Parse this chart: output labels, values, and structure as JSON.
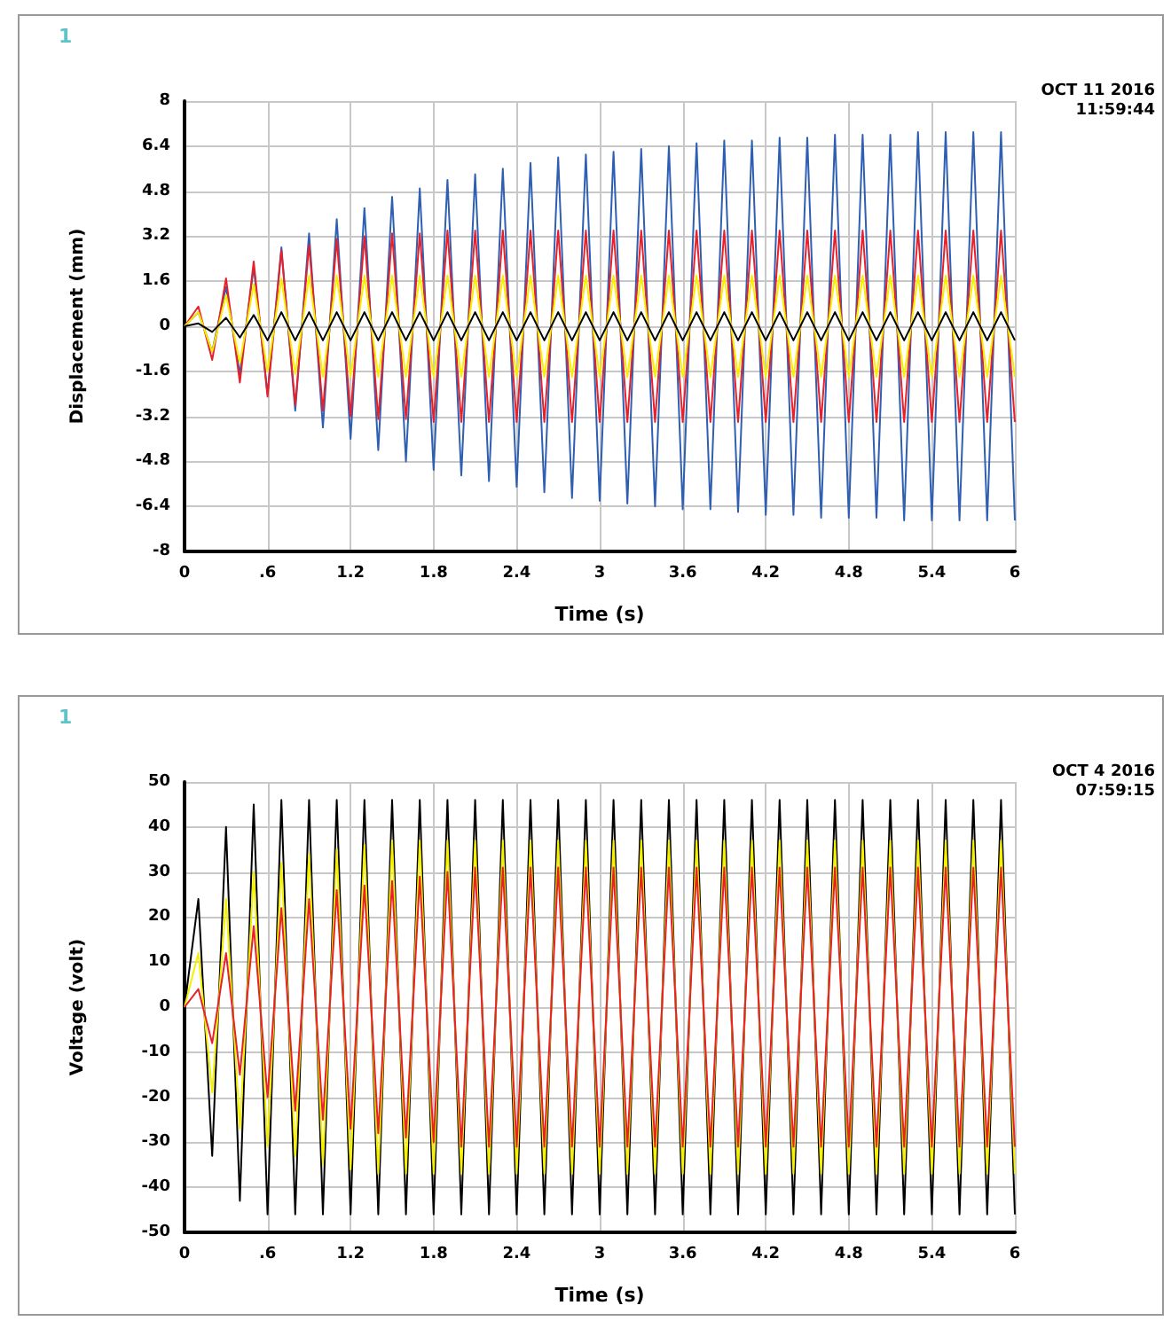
{
  "chart_data": [
    {
      "type": "line",
      "xlabel": "Time (s)",
      "ylabel": "Displacement (mm)",
      "annotations": [
        "1",
        "OCT 11 2016",
        "11:59:44"
      ],
      "x": [
        0,
        0.1,
        0.2,
        0.3,
        0.4,
        0.5,
        0.6,
        0.7,
        0.8,
        0.9,
        1,
        1.1,
        1.2,
        1.3,
        1.4,
        1.5,
        1.6,
        1.7,
        1.8,
        1.9,
        2,
        2.1,
        2.2,
        2.3,
        2.4,
        2.5,
        2.6,
        2.7,
        2.8,
        2.9,
        3,
        3.1,
        3.2,
        3.3,
        3.4,
        3.5,
        3.6,
        3.7,
        3.8,
        3.9,
        4,
        4.1,
        4.2,
        4.3,
        4.4,
        4.5,
        4.6,
        4.7,
        4.8,
        4.9,
        5,
        5.1,
        5.2,
        5.3,
        5.4,
        5.5,
        5.6,
        5.7,
        5.8,
        5.9,
        6
      ],
      "xlim": [
        0,
        6
      ],
      "xticks": [
        0,
        {
          "value": 0.6,
          "label": ".6"
        },
        1.2,
        1.8,
        2.4,
        3,
        3.6,
        4.2,
        4.8,
        5.4,
        6
      ],
      "ylim": [
        -8,
        8
      ],
      "yticks": [
        -8,
        -6.4,
        -4.8,
        -3.2,
        -1.6,
        0,
        1.6,
        3.2,
        4.8,
        6.4,
        8
      ],
      "grid": true,
      "series": [
        {
          "color": "#2f5fb3",
          "values": [
            0,
            0.5,
            -0.9,
            1.4,
            -1.7,
            2.1,
            -2.4,
            2.8,
            -3.0,
            3.3,
            -3.6,
            3.8,
            -4.0,
            4.2,
            -4.4,
            4.6,
            -4.8,
            4.9,
            -5.1,
            5.2,
            -5.3,
            5.4,
            -5.5,
            5.6,
            -5.7,
            5.8,
            -5.9,
            6.0,
            -6.1,
            6.1,
            -6.2,
            6.2,
            -6.3,
            6.3,
            -6.4,
            6.4,
            -6.5,
            6.5,
            -6.5,
            6.6,
            -6.6,
            6.6,
            -6.7,
            6.7,
            -6.7,
            6.7,
            -6.8,
            6.8,
            -6.8,
            6.8,
            -6.8,
            6.8,
            -6.9,
            6.9,
            -6.9,
            6.9,
            -6.9,
            6.9,
            -6.9,
            6.9,
            -6.9
          ]
        },
        {
          "color": "#e8202a",
          "values": [
            0,
            0.7,
            -1.2,
            1.7,
            -2.0,
            2.3,
            -2.5,
            2.7,
            -2.8,
            2.9,
            -3.0,
            3.1,
            -3.2,
            3.2,
            -3.3,
            3.3,
            -3.3,
            3.3,
            -3.4,
            3.4,
            -3.4,
            3.4,
            -3.4,
            3.4,
            -3.4,
            3.4,
            -3.4,
            3.4,
            -3.4,
            3.4,
            -3.4,
            3.4,
            -3.4,
            3.4,
            -3.4,
            3.4,
            -3.4,
            3.4,
            -3.4,
            3.4,
            -3.4,
            3.4,
            -3.4,
            3.4,
            -3.4,
            3.4,
            -3.4,
            3.4,
            -3.4,
            3.4,
            -3.4,
            3.4,
            -3.4,
            3.4,
            -3.4,
            3.4,
            -3.4,
            3.4,
            -3.4,
            3.4,
            -3.4
          ]
        },
        {
          "color": "#f5f000",
          "values": [
            0,
            0.5,
            -0.9,
            1.1,
            -1.3,
            1.5,
            -1.6,
            1.7,
            -1.7,
            1.8,
            -1.8,
            1.8,
            -1.8,
            1.8,
            -1.8,
            1.8,
            -1.8,
            1.8,
            -1.8,
            1.8,
            -1.8,
            1.8,
            -1.8,
            1.8,
            -1.8,
            1.8,
            -1.8,
            1.8,
            -1.8,
            1.8,
            -1.8,
            1.8,
            -1.8,
            1.8,
            -1.8,
            1.8,
            -1.8,
            1.8,
            -1.8,
            1.8,
            -1.8,
            1.8,
            -1.8,
            1.8,
            -1.8,
            1.8,
            -1.8,
            1.8,
            -1.8,
            1.8,
            -1.8,
            1.8,
            -1.8,
            1.8,
            -1.8,
            1.8,
            -1.8,
            1.8,
            -1.8,
            1.8,
            -1.8
          ]
        },
        {
          "color": "#000000",
          "values": [
            0,
            0.1,
            -0.2,
            0.3,
            -0.4,
            0.4,
            -0.5,
            0.5,
            -0.5,
            0.5,
            -0.5,
            0.5,
            -0.5,
            0.5,
            -0.5,
            0.5,
            -0.5,
            0.5,
            -0.5,
            0.5,
            -0.5,
            0.5,
            -0.5,
            0.5,
            -0.5,
            0.5,
            -0.5,
            0.5,
            -0.5,
            0.5,
            -0.5,
            0.5,
            -0.5,
            0.5,
            -0.5,
            0.5,
            -0.5,
            0.5,
            -0.5,
            0.5,
            -0.5,
            0.5,
            -0.5,
            0.5,
            -0.5,
            0.5,
            -0.5,
            0.5,
            -0.5,
            0.5,
            -0.5,
            0.5,
            -0.5,
            0.5,
            -0.5,
            0.5,
            -0.5,
            0.5,
            -0.5,
            0.5,
            -0.5
          ]
        }
      ]
    },
    {
      "type": "line",
      "xlabel": "Time (s)",
      "ylabel": "Voltage (volt)",
      "annotations": [
        "1",
        "OCT 4 2016",
        "07:59:15"
      ],
      "x": [
        0,
        0.1,
        0.2,
        0.3,
        0.4,
        0.5,
        0.6,
        0.7,
        0.8,
        0.9,
        1,
        1.1,
        1.2,
        1.3,
        1.4,
        1.5,
        1.6,
        1.7,
        1.8,
        1.9,
        2,
        2.1,
        2.2,
        2.3,
        2.4,
        2.5,
        2.6,
        2.7,
        2.8,
        2.9,
        3,
        3.1,
        3.2,
        3.3,
        3.4,
        3.5,
        3.6,
        3.7,
        3.8,
        3.9,
        4,
        4.1,
        4.2,
        4.3,
        4.4,
        4.5,
        4.6,
        4.7,
        4.8,
        4.9,
        5,
        5.1,
        5.2,
        5.3,
        5.4,
        5.5,
        5.6,
        5.7,
        5.8,
        5.9,
        6
      ],
      "xlim": [
        0,
        6
      ],
      "xticks": [
        0,
        {
          "value": 0.6,
          "label": ".6"
        },
        1.2,
        1.8,
        2.4,
        3,
        3.6,
        4.2,
        4.8,
        5.4,
        6
      ],
      "ylim": [
        -50,
        50
      ],
      "yticks": [
        -50,
        -40,
        -30,
        -20,
        -10,
        0,
        10,
        20,
        30,
        40,
        50
      ],
      "grid": true,
      "series": [
        {
          "color": "#000000",
          "values": [
            0,
            24,
            -33,
            40,
            -43,
            45,
            -46,
            46,
            -46,
            46,
            -46,
            46,
            -46,
            46,
            -46,
            46,
            -46,
            46,
            -46,
            46,
            -46,
            46,
            -46,
            46,
            -46,
            46,
            -46,
            46,
            -46,
            46,
            -46,
            46,
            -46,
            46,
            -46,
            46,
            -46,
            46,
            -46,
            46,
            -46,
            46,
            -46,
            46,
            -46,
            46,
            -46,
            46,
            -46,
            46,
            -46,
            46,
            -46,
            46,
            -46,
            46,
            -46,
            46,
            -46,
            46,
            -46
          ]
        },
        {
          "color": "#f5f000",
          "values": [
            0,
            12,
            -19,
            24,
            -27,
            30,
            -31,
            32,
            -33,
            34,
            -35,
            35,
            -36,
            36,
            -37,
            37,
            -37,
            37,
            -37,
            37,
            -37,
            37,
            -37,
            37,
            -37,
            37,
            -37,
            37,
            -37,
            37,
            -37,
            37,
            -37,
            37,
            -37,
            37,
            -37,
            37,
            -37,
            37,
            -37,
            37,
            -37,
            37,
            -37,
            37,
            -37,
            37,
            -37,
            37,
            -37,
            37,
            -37,
            37,
            -37,
            37,
            -37,
            37,
            -37,
            37,
            -37
          ]
        },
        {
          "color": "#e8202a",
          "values": [
            0,
            4,
            -8,
            12,
            -15,
            18,
            -20,
            22,
            -23,
            24,
            -25,
            26,
            -27,
            27,
            -28,
            28,
            -29,
            29,
            -30,
            30,
            -31,
            31,
            -31,
            31,
            -31,
            31,
            -31,
            31,
            -31,
            31,
            -31,
            31,
            -31,
            31,
            -31,
            31,
            -31,
            31,
            -31,
            31,
            -31,
            31,
            -31,
            31,
            -31,
            31,
            -31,
            31,
            -31,
            31,
            -31,
            31,
            -31,
            31,
            -31,
            31,
            -31,
            31,
            -31,
            31,
            -31
          ]
        }
      ]
    }
  ]
}
